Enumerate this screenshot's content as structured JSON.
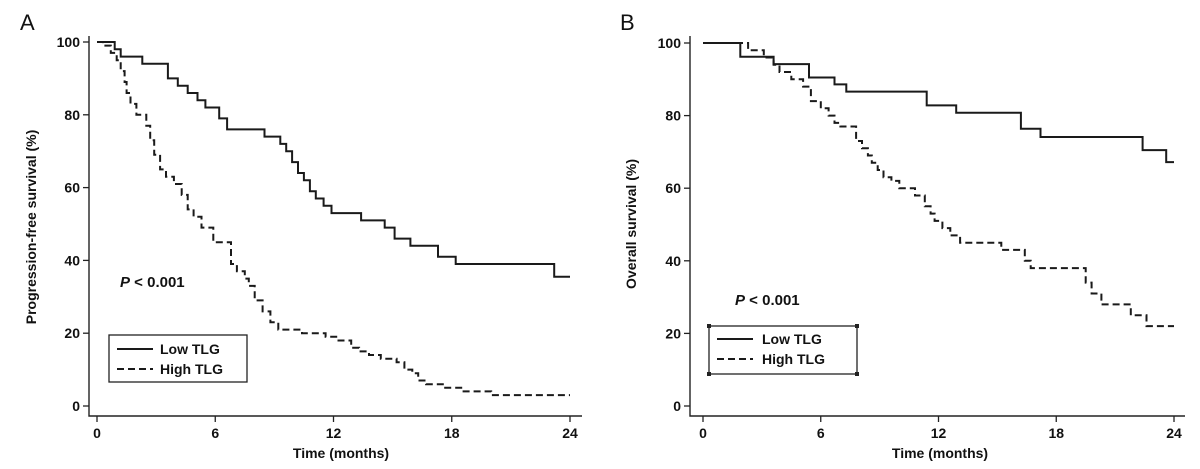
{
  "colors": {
    "line": "#1a1a1a",
    "axis": "#222222",
    "background": "#ffffff"
  },
  "chart_data": [
    {
      "type": "line",
      "subtype": "kaplan-meier step",
      "panel": "A",
      "title": "",
      "xlabel": "Time (months)",
      "ylabel": "Progression-free survival (%)",
      "xlim": [
        0,
        24
      ],
      "ylim": [
        0,
        100
      ],
      "xticks": [
        0,
        6,
        12,
        18,
        24
      ],
      "yticks": [
        0,
        20,
        40,
        60,
        80,
        100
      ],
      "annotation": {
        "p": "P",
        "rest": " < 0.001"
      },
      "legend_placement": "lower-left",
      "series": [
        {
          "name": "Low TLG",
          "style": "solid",
          "x": [
            0,
            0.9,
            1.2,
            2.3,
            3.6,
            4.1,
            4.6,
            5.1,
            5.5,
            6.2,
            6.6,
            8.5,
            9.3,
            9.6,
            9.9,
            10.2,
            10.5,
            10.8,
            11.1,
            11.5,
            11.9,
            12.7,
            13.4,
            14.6,
            15.1,
            15.9,
            17.3,
            18.2,
            23.2,
            24
          ],
          "y": [
            100,
            98,
            96,
            94,
            90,
            88,
            86,
            84,
            82,
            79,
            76,
            74,
            72,
            70,
            67,
            64,
            62,
            59,
            57,
            55,
            53,
            53,
            51,
            49,
            46,
            44,
            41,
            39,
            35.5,
            35.5
          ]
        },
        {
          "name": "High TLG",
          "style": "dashed",
          "x": [
            0,
            0.3,
            0.7,
            1.0,
            1.2,
            1.4,
            1.5,
            1.7,
            2.0,
            2.5,
            2.7,
            2.9,
            3.2,
            3.5,
            3.9,
            4.3,
            4.6,
            4.9,
            5.3,
            5.9,
            6.8,
            7.1,
            7.5,
            7.7,
            8.0,
            8.4,
            8.8,
            9.2,
            10.4,
            11.6,
            12.2,
            12.9,
            13.3,
            13.8,
            14.4,
            15.2,
            15.6,
            16.0,
            16.3,
            16.7,
            17.6,
            18.6,
            20.0,
            24
          ],
          "y": [
            100,
            99,
            97,
            95,
            92,
            89,
            86,
            83,
            80,
            77,
            73,
            69,
            65,
            63,
            61,
            58,
            54,
            52,
            49,
            45,
            39,
            37,
            35,
            33,
            29,
            26,
            23,
            21,
            20,
            19,
            18,
            16,
            15,
            14,
            13,
            12,
            10,
            9,
            7,
            6,
            5,
            4,
            3,
            3
          ]
        }
      ]
    },
    {
      "type": "line",
      "subtype": "kaplan-meier step",
      "panel": "B",
      "title": "",
      "xlabel": "Time (months)",
      "ylabel": "Overall survival (%)",
      "xlim": [
        0,
        24
      ],
      "ylim": [
        0,
        100
      ],
      "xticks": [
        0,
        6,
        12,
        18,
        24
      ],
      "yticks": [
        0,
        20,
        40,
        60,
        80,
        100
      ],
      "annotation": {
        "p": "P",
        "rest": " < 0.001"
      },
      "legend_placement": "lower-left",
      "series": [
        {
          "name": "Low TLG",
          "style": "solid",
          "x": [
            0,
            1.9,
            3.6,
            5.4,
            6.7,
            7.3,
            11.4,
            12.9,
            16.2,
            17.2,
            22.4,
            23.6,
            24
          ],
          "y": [
            100,
            96.2,
            94.2,
            90.5,
            88.6,
            86.6,
            82.8,
            80.8,
            76.4,
            74.1,
            70.5,
            67.2,
            67.2
          ]
        },
        {
          "name": "High TLG",
          "style": "dashed",
          "x": [
            0,
            2.3,
            3.1,
            3.6,
            3.9,
            4.5,
            5.1,
            5.5,
            6.0,
            6.4,
            6.7,
            7.0,
            7.8,
            8.1,
            8.4,
            8.6,
            8.9,
            9.2,
            9.6,
            10.0,
            10.8,
            11.3,
            11.6,
            11.8,
            12.2,
            12.6,
            13.1,
            13.7,
            15.2,
            16.4,
            16.7,
            17.4,
            18.1,
            19.5,
            19.8,
            20.3,
            21.8,
            22.6,
            24
          ],
          "y": [
            100,
            98,
            96,
            94,
            92,
            90,
            88,
            84,
            82,
            80,
            78,
            77,
            73,
            71,
            69,
            67,
            65,
            63,
            62,
            60,
            58,
            55,
            53,
            51,
            49,
            47,
            45,
            45,
            43,
            40,
            38,
            38,
            38,
            34,
            31,
            28,
            25,
            22,
            22
          ]
        }
      ]
    }
  ]
}
